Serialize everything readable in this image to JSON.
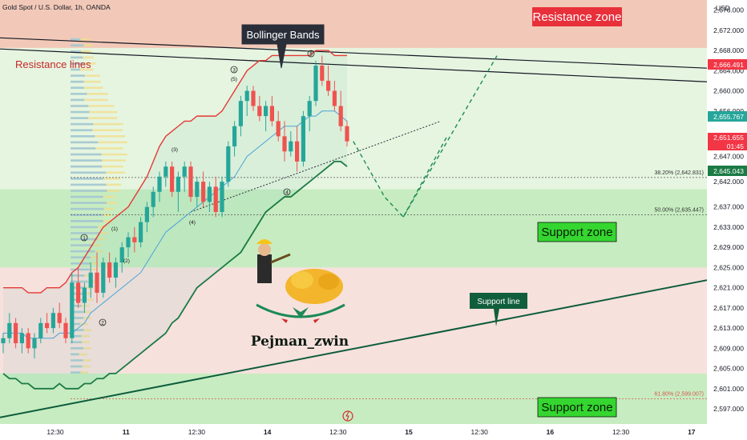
{
  "header": {
    "symbol_title": "Gold Spot / U.S. Dollar, 1h, OANDA",
    "currency": "USD"
  },
  "annotations": {
    "resistance_zone": "Resistance zone",
    "support_zone_upper": "Support zone",
    "support_zone_lower": "Support zone",
    "resistance_lines": "Resistance lines",
    "bollinger_bands": "Bollinger Bands",
    "support_line": "Support line",
    "author": "Pejman_zwin",
    "wave_labels_circled": [
      "1",
      "2",
      "3",
      "4",
      "5"
    ],
    "wave_labels_paren": [
      "(1)",
      "(2)",
      "(3)",
      "(4)",
      "(5)"
    ]
  },
  "price_tags": {
    "high": "2,666.491",
    "mid": "2,655.767",
    "last": "2,651.655",
    "countdown": "01:45",
    "band": "2,645.043"
  },
  "fibonacci": [
    {
      "label": "38.20% (2,642.831)",
      "price": 2642.831
    },
    {
      "label": "50.00% (2,635.447)",
      "price": 2635.447
    },
    {
      "label": "61.80% (2,599.007)",
      "price": 2599.007
    }
  ],
  "colors": {
    "resistance_zone": "#f2c9b8",
    "support_zone": "#c7ecc1",
    "neutral_zone_green": "#e6f5e0",
    "neutral_zone_pink": "#f7e1dd",
    "bull_candle": "#26a69a",
    "bear_candle": "#ef5350",
    "upper_band": "#e53935",
    "lower_band": "#1b7a45",
    "basis": "#4ba3d6",
    "price_high_tag": "#f23645",
    "price_mid_tag": "#26a69a",
    "band_tag": "#1b7a45"
  },
  "chart_data": {
    "type": "candlestick",
    "title": "Gold Spot / U.S. Dollar, 1h, OANDA",
    "y_axis": {
      "label": "USD",
      "ylim": [
        2594,
        2678
      ],
      "ticks": [
        "2,676.000",
        "2,672.000",
        "2,668.000",
        "2,664.000",
        "2,660.000",
        "2,656.000",
        "2,651.000",
        "2,647.000",
        "2,642.000",
        "2,637.000",
        "2,633.000",
        "2,629.000",
        "2,625.000",
        "2,621.000",
        "2,617.000",
        "2,613.000",
        "2,609.000",
        "2,605.000",
        "2,601.000",
        "2,597.000"
      ]
    },
    "x_axis": {
      "ticks": [
        "12:30",
        "11",
        "12:30",
        "14",
        "12:30",
        "15",
        "12:30",
        "16",
        "12:30",
        "17"
      ]
    },
    "zones": [
      {
        "name": "Resistance zone",
        "from": 2668.5,
        "to": 2678
      },
      {
        "name": "Support zone",
        "from": 2625,
        "to": 2640.5
      },
      {
        "name": "Support zone",
        "from": 2595.5,
        "to": 2604
      }
    ],
    "resistance_lines": [
      {
        "start": {
          "x": "start",
          "y": 2670.5
        },
        "end": {
          "x": "end",
          "y": 2664.5
        }
      },
      {
        "start": {
          "x": "start",
          "y": 2668.3
        },
        "end": {
          "x": "end",
          "y": 2661.8
        }
      }
    ],
    "support_line": {
      "start": {
        "x": "start",
        "y": 2595.3
      },
      "end": {
        "x": "end",
        "y": 2622.5
      }
    },
    "candles": [
      [
        2610,
        2612,
        2608,
        2611
      ],
      [
        2611,
        2616,
        2610,
        2614
      ],
      [
        2614,
        2615,
        2609,
        2610
      ],
      [
        2610,
        2613,
        2608,
        2612
      ],
      [
        2612,
        2613,
        2608,
        2609
      ],
      [
        2609,
        2612,
        2607,
        2611
      ],
      [
        2611,
        2615,
        2610,
        2614
      ],
      [
        2614,
        2616,
        2612,
        2613
      ],
      [
        2613,
        2617,
        2612,
        2616
      ],
      [
        2616,
        2618,
        2613,
        2614
      ],
      [
        2614,
        2615,
        2610,
        2611
      ],
      [
        2611,
        2624,
        2610,
        2622
      ],
      [
        2622,
        2625,
        2617,
        2618
      ],
      [
        2618,
        2622,
        2616,
        2621
      ],
      [
        2621,
        2626,
        2619,
        2624
      ],
      [
        2624,
        2628,
        2618,
        2620
      ],
      [
        2620,
        2627,
        2619,
        2626
      ],
      [
        2626,
        2628,
        2622,
        2623
      ],
      [
        2623,
        2627,
        2621,
        2626
      ],
      [
        2626,
        2630,
        2624,
        2629
      ],
      [
        2629,
        2632,
        2627,
        2631
      ],
      [
        2631,
        2633,
        2628,
        2630
      ],
      [
        2630,
        2635,
        2629,
        2634
      ],
      [
        2634,
        2638,
        2632,
        2637
      ],
      [
        2637,
        2641,
        2635,
        2640
      ],
      [
        2640,
        2644,
        2638,
        2643
      ],
      [
        2643,
        2646,
        2641,
        2645
      ],
      [
        2645,
        2646,
        2639,
        2640
      ],
      [
        2640,
        2644,
        2636,
        2643
      ],
      [
        2643,
        2646,
        2640,
        2645
      ],
      [
        2645,
        2646,
        2638,
        2639
      ],
      [
        2639,
        2643,
        2637,
        2642
      ],
      [
        2642,
        2644,
        2637,
        2638
      ],
      [
        2638,
        2642,
        2636,
        2641
      ],
      [
        2641,
        2643,
        2635,
        2636
      ],
      [
        2636,
        2643,
        2635,
        2642
      ],
      [
        2642,
        2650,
        2641,
        2649
      ],
      [
        2649,
        2654,
        2647,
        2653
      ],
      [
        2653,
        2659,
        2651,
        2658
      ],
      [
        2658,
        2661,
        2655,
        2660
      ],
      [
        2660,
        2661,
        2656,
        2657
      ],
      [
        2657,
        2659,
        2654,
        2655
      ],
      [
        2655,
        2658,
        2652,
        2657
      ],
      [
        2657,
        2659,
        2653,
        2654
      ],
      [
        2654,
        2656,
        2650,
        2651
      ],
      [
        2651,
        2654,
        2646,
        2648
      ],
      [
        2648,
        2652,
        2647,
        2650
      ],
      [
        2650,
        2653,
        2644,
        2646
      ],
      [
        2646,
        2656,
        2645,
        2655
      ],
      [
        2655,
        2659,
        2652,
        2658
      ],
      [
        2658,
        2666,
        2657,
        2665
      ],
      [
        2665,
        2667,
        2661,
        2662
      ],
      [
        2662,
        2665,
        2659,
        2660
      ],
      [
        2660,
        2662,
        2656,
        2657
      ],
      [
        2657,
        2660,
        2652,
        2653
      ],
      [
        2653,
        2654,
        2649,
        2650
      ]
    ],
    "upper_band": [
      2621,
      2621,
      2621,
      2621,
      2620,
      2620,
      2620,
      2621,
      2621,
      2621,
      2622,
      2624,
      2625,
      2627,
      2629,
      2631,
      2633,
      2634,
      2635,
      2636,
      2637,
      2639,
      2641,
      2643,
      2646,
      2649,
      2651,
      2652,
      2653,
      2654,
      2654,
      2655,
      2655,
      2655,
      2655,
      2656,
      2658,
      2660,
      2662,
      2664,
      2665,
      2666,
      2666,
      2667,
      2667,
      2667,
      2667,
      2667,
      2667,
      2667,
      2668,
      2668,
      2668,
      2667,
      2667,
      2667
    ],
    "lower_band": [
      2604,
      2603,
      2603,
      2602,
      2602,
      2601,
      2601,
      2601,
      2601,
      2602,
      2601,
      2601,
      2601,
      2602,
      2602,
      2603,
      2603,
      2604,
      2604,
      2605,
      2606,
      2607,
      2608,
      2609,
      2610,
      2611,
      2612,
      2614,
      2615,
      2617,
      2619,
      2621,
      2622,
      2623,
      2624,
      2625,
      2626,
      2627,
      2628,
      2630,
      2632,
      2634,
      2636,
      2637,
      2638,
      2639,
      2639,
      2640,
      2641,
      2642,
      2643,
      2644,
      2645,
      2646,
      2646,
      2645
    ],
    "basis": [
      2612,
      2612,
      2612,
      2612,
      2611,
      2611,
      2611,
      2611,
      2611,
      2612,
      2612,
      2612,
      2613,
      2614,
      2616,
      2617,
      2618,
      2619,
      2620,
      2621,
      2622,
      2623,
      2624,
      2626,
      2628,
      2630,
      2632,
      2633,
      2634,
      2635,
      2636,
      2637,
      2638,
      2639,
      2640,
      2641,
      2642,
      2643,
      2645,
      2647,
      2648,
      2649,
      2650,
      2651,
      2652,
      2653,
      2653,
      2653,
      2654,
      2655,
      2655,
      2656,
      2656,
      2656,
      2655,
      2654
    ],
    "projection": [
      {
        "x": 56,
        "y": 2650
      },
      {
        "x": 61,
        "y": 2639
      },
      {
        "x": 64,
        "y": 2635
      },
      {
        "x": 79,
        "y": 2667
      }
    ],
    "projection_alt": [
      {
        "x": 64,
        "y": 2635
      },
      {
        "x": 71,
        "y": 2651
      }
    ]
  }
}
